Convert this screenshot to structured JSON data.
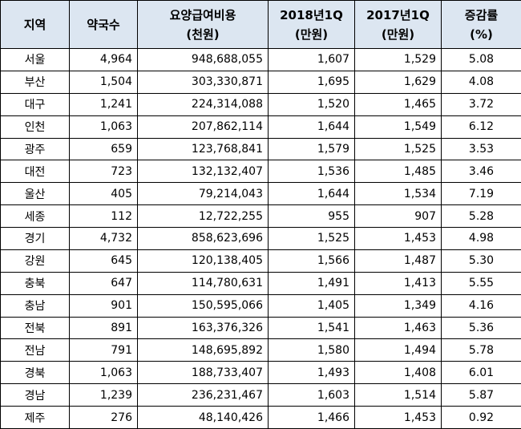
{
  "headers": {
    "region": [
      "지역"
    ],
    "pharmacies": [
      "약국수"
    ],
    "cost": [
      "요양급여비용",
      "(천원)"
    ],
    "q2018": [
      "2018년1Q",
      "(만원)"
    ],
    "q2017": [
      "2017년1Q",
      "(만원)"
    ],
    "rate": [
      "증감률",
      "(%)"
    ]
  },
  "rows": [
    {
      "region": "서울",
      "pharmacies": "4,964",
      "cost": "948,688,055",
      "q2018": "1,607",
      "q2017": "1,529",
      "rate": "5.08"
    },
    {
      "region": "부산",
      "pharmacies": "1,504",
      "cost": "303,330,871",
      "q2018": "1,695",
      "q2017": "1,629",
      "rate": "4.08"
    },
    {
      "region": "대구",
      "pharmacies": "1,241",
      "cost": "224,314,088",
      "q2018": "1,520",
      "q2017": "1,465",
      "rate": "3.72"
    },
    {
      "region": "인천",
      "pharmacies": "1,063",
      "cost": "207,862,114",
      "q2018": "1,644",
      "q2017": "1,549",
      "rate": "6.12"
    },
    {
      "region": "광주",
      "pharmacies": "659",
      "cost": "123,768,841",
      "q2018": "1,579",
      "q2017": "1,525",
      "rate": "3.53"
    },
    {
      "region": "대전",
      "pharmacies": "723",
      "cost": "132,132,407",
      "q2018": "1,536",
      "q2017": "1,485",
      "rate": "3.46"
    },
    {
      "region": "울산",
      "pharmacies": "405",
      "cost": "79,214,043",
      "q2018": "1,644",
      "q2017": "1,534",
      "rate": "7.19"
    },
    {
      "region": "세종",
      "pharmacies": "112",
      "cost": "12,722,255",
      "q2018": "955",
      "q2017": "907",
      "rate": "5.28"
    },
    {
      "region": "경기",
      "pharmacies": "4,732",
      "cost": "858,623,696",
      "q2018": "1,525",
      "q2017": "1,453",
      "rate": "4.98"
    },
    {
      "region": "강원",
      "pharmacies": "645",
      "cost": "120,138,405",
      "q2018": "1,566",
      "q2017": "1,487",
      "rate": "5.30"
    },
    {
      "region": "충북",
      "pharmacies": "647",
      "cost": "114,780,631",
      "q2018": "1,491",
      "q2017": "1,413",
      "rate": "5.55"
    },
    {
      "region": "충남",
      "pharmacies": "901",
      "cost": "150,595,066",
      "q2018": "1,405",
      "q2017": "1,349",
      "rate": "4.16"
    },
    {
      "region": "전북",
      "pharmacies": "891",
      "cost": "163,376,326",
      "q2018": "1,541",
      "q2017": "1,463",
      "rate": "5.36"
    },
    {
      "region": "전남",
      "pharmacies": "791",
      "cost": "148,695,892",
      "q2018": "1,580",
      "q2017": "1,494",
      "rate": "5.78"
    },
    {
      "region": "경북",
      "pharmacies": "1,063",
      "cost": "188,733,407",
      "q2018": "1,493",
      "q2017": "1,408",
      "rate": "6.01"
    },
    {
      "region": "경남",
      "pharmacies": "1,239",
      "cost": "236,231,467",
      "q2018": "1,603",
      "q2017": "1,514",
      "rate": "5.87"
    },
    {
      "region": "제주",
      "pharmacies": "276",
      "cost": "48,140,426",
      "q2018": "1,466",
      "q2017": "1,453",
      "rate": "0.92"
    }
  ],
  "colors": {
    "header_bg": "#dce6f1",
    "border": "#000000",
    "text": "#000000"
  }
}
